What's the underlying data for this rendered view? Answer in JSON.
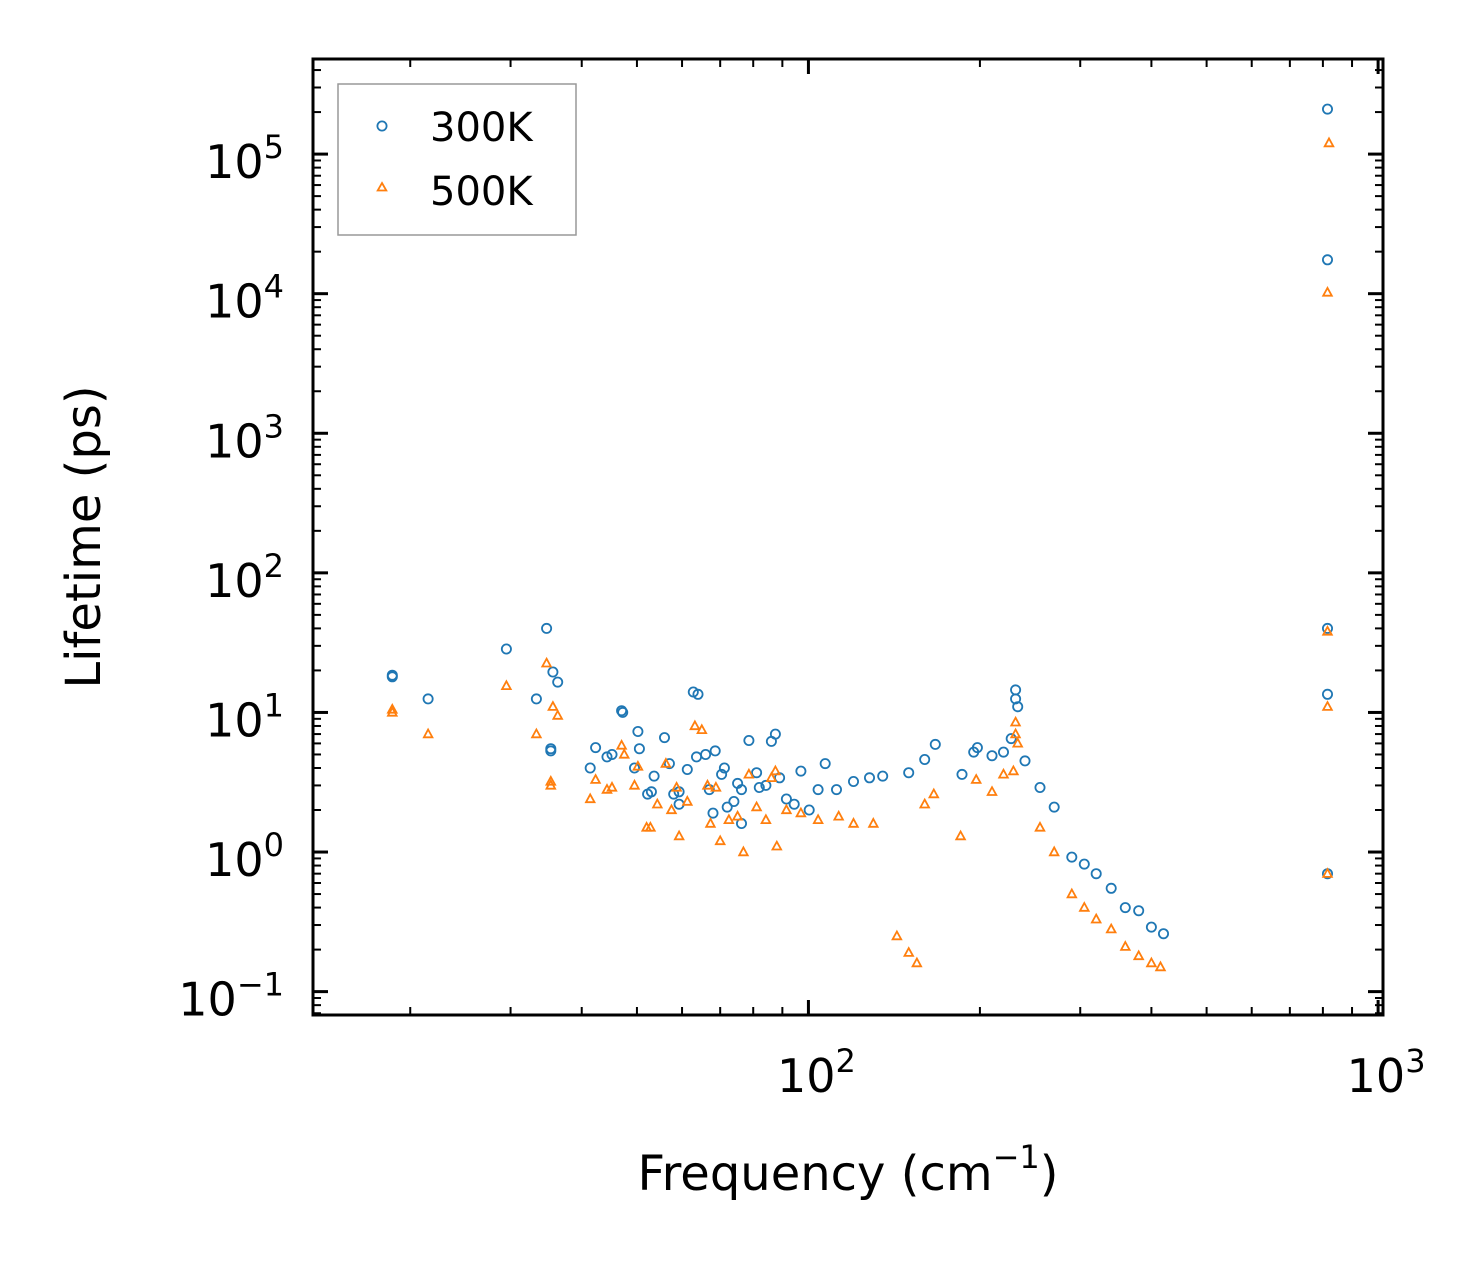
{
  "chart_data": {
    "type": "scatter",
    "xlabel": "Frequency (cm",
    "xlabel_sup": "−1",
    "xlabel_end": ")",
    "ylabel": "Lifetime (ps)",
    "xscale": "log",
    "yscale": "log",
    "xlim": [
      13.5,
      1020
    ],
    "ylim": [
      0.068,
      480000
    ],
    "x_ticks": [
      {
        "value": 100,
        "base": "10",
        "exp": "2"
      },
      {
        "value": 1000,
        "base": "10",
        "exp": "3"
      }
    ],
    "y_ticks": [
      {
        "value": 0.1,
        "base": "10",
        "exp": "−1"
      },
      {
        "value": 1,
        "base": "10",
        "exp": "0"
      },
      {
        "value": 10,
        "base": "10",
        "exp": "1"
      },
      {
        "value": 100,
        "base": "10",
        "exp": "2"
      },
      {
        "value": 1000,
        "base": "10",
        "exp": "3"
      },
      {
        "value": 10000,
        "base": "10",
        "exp": "4"
      },
      {
        "value": 100000,
        "base": "10",
        "exp": "5"
      }
    ],
    "legend_position": "top-left",
    "series": [
      {
        "name": "300K",
        "marker": "circle",
        "color": "#1f77b4",
        "points": [
          [
            18.6,
            18.5
          ],
          [
            18.6,
            18.0
          ],
          [
            21.5,
            12.5
          ],
          [
            29.5,
            28.5
          ],
          [
            33.3,
            12.5
          ],
          [
            34.7,
            40.0
          ],
          [
            35.3,
            5.5
          ],
          [
            35.3,
            5.3
          ],
          [
            35.6,
            19.5
          ],
          [
            36.3,
            16.5
          ],
          [
            41.4,
            4.0
          ],
          [
            42.3,
            5.6
          ],
          [
            44.3,
            4.8
          ],
          [
            45.2,
            5.0
          ],
          [
            47.0,
            10.3
          ],
          [
            47.2,
            10.0
          ],
          [
            49.5,
            4.0
          ],
          [
            50.2,
            7.3
          ],
          [
            50.5,
            5.5
          ],
          [
            52.2,
            2.6
          ],
          [
            53.0,
            2.7
          ],
          [
            53.6,
            3.5
          ],
          [
            55.9,
            6.6
          ],
          [
            57.0,
            4.3
          ],
          [
            58.0,
            2.6
          ],
          [
            59.3,
            2.7
          ],
          [
            59.3,
            2.2
          ],
          [
            61.3,
            3.9
          ],
          [
            62.8,
            14.0
          ],
          [
            64.0,
            13.5
          ],
          [
            63.6,
            4.8
          ],
          [
            66.0,
            5.0
          ],
          [
            67.0,
            2.8
          ],
          [
            68.6,
            5.3
          ],
          [
            68.0,
            1.9
          ],
          [
            70.4,
            3.6
          ],
          [
            71.2,
            4.0
          ],
          [
            72.0,
            2.1
          ],
          [
            74.0,
            2.3
          ],
          [
            75.1,
            3.1
          ],
          [
            76.3,
            1.6
          ],
          [
            76.3,
            2.8
          ],
          [
            78.6,
            6.3
          ],
          [
            81.1,
            3.7
          ],
          [
            82.0,
            2.9
          ],
          [
            84.2,
            3.0
          ],
          [
            86.1,
            6.2
          ],
          [
            87.5,
            7.0
          ],
          [
            89.0,
            3.4
          ],
          [
            91.5,
            2.4
          ],
          [
            94.4,
            2.2
          ],
          [
            97.0,
            3.8
          ],
          [
            100.3,
            2.0
          ],
          [
            104.0,
            2.8
          ],
          [
            107.0,
            4.3
          ],
          [
            112.0,
            2.8
          ],
          [
            120.0,
            3.2
          ],
          [
            128.0,
            3.4
          ],
          [
            135.0,
            3.5
          ],
          [
            150.0,
            3.7
          ],
          [
            160.0,
            4.6
          ],
          [
            167.0,
            5.9
          ],
          [
            186.0,
            3.6
          ],
          [
            195.0,
            5.2
          ],
          [
            198.0,
            5.6
          ],
          [
            210.0,
            4.9
          ],
          [
            220.0,
            5.2
          ],
          [
            227.0,
            6.5
          ],
          [
            231.0,
            14.5
          ],
          [
            231.0,
            12.5
          ],
          [
            233.0,
            11.0
          ],
          [
            240.0,
            4.5
          ],
          [
            255.0,
            2.9
          ],
          [
            270.0,
            2.1
          ],
          [
            290.0,
            0.92
          ],
          [
            305.0,
            0.82
          ],
          [
            320.0,
            0.7
          ],
          [
            340.0,
            0.55
          ],
          [
            360.0,
            0.4
          ],
          [
            380.0,
            0.38
          ],
          [
            400.0,
            0.29
          ],
          [
            420.0,
            0.26
          ],
          [
            815.0,
            210000
          ],
          [
            815.0,
            17500
          ],
          [
            815.0,
            40.0
          ],
          [
            815.0,
            13.5
          ],
          [
            815.0,
            0.7
          ]
        ]
      },
      {
        "name": "500K",
        "marker": "triangle",
        "color": "#ff7f0e",
        "points": [
          [
            18.6,
            10.5
          ],
          [
            18.6,
            10.0
          ],
          [
            21.5,
            7.0
          ],
          [
            29.5,
            15.5
          ],
          [
            33.3,
            7.0
          ],
          [
            34.7,
            22.5
          ],
          [
            35.3,
            3.2
          ],
          [
            35.3,
            3.0
          ],
          [
            35.6,
            11.0
          ],
          [
            36.3,
            9.5
          ],
          [
            41.4,
            2.4
          ],
          [
            42.3,
            3.3
          ],
          [
            44.3,
            2.8
          ],
          [
            45.2,
            2.9
          ],
          [
            47.0,
            5.8
          ],
          [
            47.5,
            5.0
          ],
          [
            49.5,
            3.0
          ],
          [
            50.2,
            4.1
          ],
          [
            52.0,
            1.5
          ],
          [
            52.8,
            1.5
          ],
          [
            54.3,
            2.2
          ],
          [
            56.2,
            4.3
          ],
          [
            57.5,
            2.0
          ],
          [
            58.7,
            2.9
          ],
          [
            59.3,
            1.3
          ],
          [
            61.3,
            2.3
          ],
          [
            63.2,
            8.0
          ],
          [
            65.0,
            7.5
          ],
          [
            66.5,
            3.0
          ],
          [
            67.3,
            1.6
          ],
          [
            68.8,
            2.9
          ],
          [
            70.0,
            1.2
          ],
          [
            72.5,
            1.7
          ],
          [
            75.1,
            1.8
          ],
          [
            76.9,
            1.0
          ],
          [
            78.6,
            3.6
          ],
          [
            81.1,
            2.1
          ],
          [
            84.2,
            1.7
          ],
          [
            86.1,
            3.4
          ],
          [
            87.5,
            3.8
          ],
          [
            88.0,
            1.1
          ],
          [
            91.5,
            2.0
          ],
          [
            97.0,
            1.9
          ],
          [
            104.0,
            1.7
          ],
          [
            113.0,
            1.8
          ],
          [
            120.0,
            1.6
          ],
          [
            130.0,
            1.6
          ],
          [
            143.0,
            0.25
          ],
          [
            150.0,
            0.19
          ],
          [
            155.0,
            0.16
          ],
          [
            160.0,
            2.2
          ],
          [
            166.0,
            2.6
          ],
          [
            185.0,
            1.3
          ],
          [
            197.0,
            3.3
          ],
          [
            210.0,
            2.7
          ],
          [
            220.0,
            3.6
          ],
          [
            229.0,
            3.8
          ],
          [
            231.0,
            8.5
          ],
          [
            231.0,
            7.0
          ],
          [
            233.0,
            6.0
          ],
          [
            255.0,
            1.5
          ],
          [
            270.0,
            1.0
          ],
          [
            290.0,
            0.5
          ],
          [
            305.0,
            0.4
          ],
          [
            320.0,
            0.33
          ],
          [
            340.0,
            0.28
          ],
          [
            360.0,
            0.21
          ],
          [
            380.0,
            0.18
          ],
          [
            400.0,
            0.16
          ],
          [
            415.0,
            0.15
          ],
          [
            820.0,
            120000
          ],
          [
            815.0,
            10200
          ],
          [
            815.0,
            38.0
          ],
          [
            815.0,
            11.0
          ],
          [
            815.0,
            0.7
          ]
        ]
      }
    ]
  }
}
